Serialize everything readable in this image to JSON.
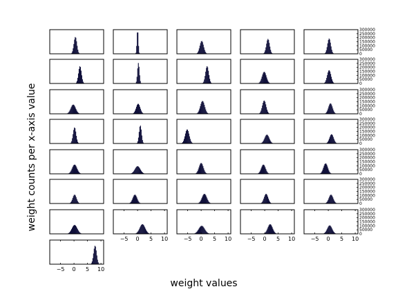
{
  "chart_data": {
    "type": "bar",
    "title": "",
    "xlabel": "weight values",
    "ylabel": "weight counts per x-axis value",
    "layout": {
      "rows": 8,
      "cols": 5,
      "panel_count": 36
    },
    "xlim": [
      -9,
      11
    ],
    "ylim": [
      0,
      300000
    ],
    "xticks": [
      -5,
      0,
      5,
      10
    ],
    "yticks": [
      0,
      50000,
      100000,
      150000,
      200000,
      250000,
      300000
    ],
    "ytick_labels": [
      "0",
      "50000",
      "100000",
      "150000",
      "200000",
      "250000",
      "300000"
    ],
    "grid": false,
    "bar_color": "#10103a",
    "panels": [
      {
        "mean": 0.5,
        "sd": 0.55,
        "peak": 210000
      },
      {
        "mean": 0.0,
        "sd": 0.25,
        "peak": 300000
      },
      {
        "mean": 0.2,
        "sd": 0.7,
        "peak": 160000
      },
      {
        "mean": 1.2,
        "sd": 0.6,
        "peak": 185000
      },
      {
        "mean": 0.3,
        "sd": 0.6,
        "peak": 190000
      },
      {
        "mean": 2.2,
        "sd": 0.55,
        "peak": 215000
      },
      {
        "mean": 0.3,
        "sd": 0.35,
        "peak": 255000
      },
      {
        "mean": 2.2,
        "sd": 0.6,
        "peak": 215000
      },
      {
        "mean": -0.2,
        "sd": 0.8,
        "peak": 145000
      },
      {
        "mean": 0.3,
        "sd": 0.7,
        "peak": 165000
      },
      {
        "mean": -0.3,
        "sd": 0.9,
        "peak": 115000
      },
      {
        "mean": 0.2,
        "sd": 0.75,
        "peak": 125000
      },
      {
        "mean": 0.5,
        "sd": 0.8,
        "peak": 160000
      },
      {
        "mean": -0.2,
        "sd": 0.7,
        "peak": 165000
      },
      {
        "mean": 0.8,
        "sd": 0.75,
        "peak": 130000
      },
      {
        "mean": 0.2,
        "sd": 0.55,
        "peak": 200000
      },
      {
        "mean": 1.0,
        "sd": 0.45,
        "peak": 225000
      },
      {
        "mean": -5.2,
        "sd": 0.75,
        "peak": 175000
      },
      {
        "mean": 0.8,
        "sd": 0.85,
        "peak": 110000
      },
      {
        "mean": 1.2,
        "sd": 0.75,
        "peak": 115000
      },
      {
        "mean": 0.2,
        "sd": 0.9,
        "peak": 115000
      },
      {
        "mean": 0.0,
        "sd": 1.0,
        "peak": 95000
      },
      {
        "mean": 0.0,
        "sd": 0.8,
        "peak": 135000
      },
      {
        "mean": -0.5,
        "sd": 0.8,
        "peak": 115000
      },
      {
        "mean": -1.0,
        "sd": 0.8,
        "peak": 130000
      },
      {
        "mean": 0.2,
        "sd": 0.7,
        "peak": 110000
      },
      {
        "mean": -1.0,
        "sd": 0.8,
        "peak": 110000
      },
      {
        "mean": 1.2,
        "sd": 0.9,
        "peak": 120000
      },
      {
        "mean": 0.5,
        "sd": 0.75,
        "peak": 120000
      },
      {
        "mean": 1.0,
        "sd": 0.8,
        "peak": 110000
      },
      {
        "mean": 0.2,
        "sd": 1.0,
        "peak": 110000
      },
      {
        "mean": 1.8,
        "sd": 1.0,
        "peak": 120000
      },
      {
        "mean": 0.2,
        "sd": 1.1,
        "peak": 100000
      },
      {
        "mean": 2.0,
        "sd": 0.9,
        "peak": 120000
      },
      {
        "mean": 0.5,
        "sd": 0.9,
        "peak": 105000
      },
      {
        "mean": 7.8,
        "sd": 0.55,
        "peak": 230000
      }
    ]
  }
}
